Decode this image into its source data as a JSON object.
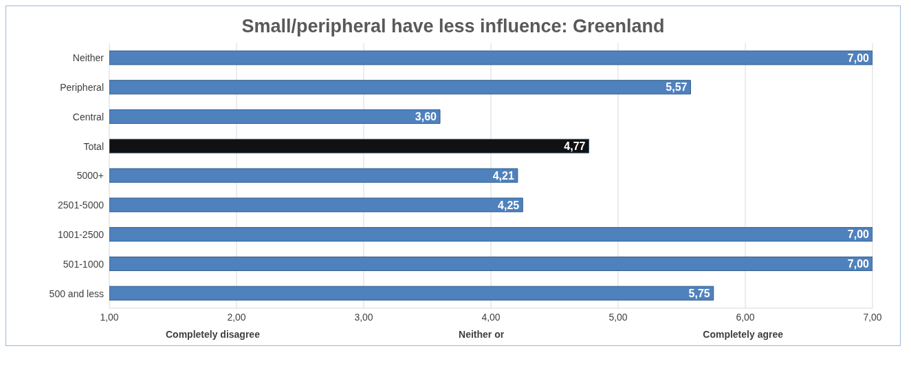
{
  "chart_data": {
    "type": "bar",
    "orientation": "horizontal",
    "title": "Small/peripheral have less influence: Greenland",
    "categories": [
      "Neither",
      "Peripheral",
      "Central",
      "Total",
      "5000+",
      "2501-5000",
      "1001-2500",
      "501-1000",
      "500 and less"
    ],
    "values": [
      7.0,
      5.57,
      3.6,
      4.77,
      4.21,
      4.25,
      7.0,
      7.0,
      5.75
    ],
    "colors": [
      "#4f81bd",
      "#4f81bd",
      "#4f81bd",
      "#111111",
      "#4f81bd",
      "#4f81bd",
      "#4f81bd",
      "#4f81bd",
      "#4f81bd"
    ],
    "value_labels": [
      "7,00",
      "5,57",
      "3,60",
      "4,77",
      "4,21",
      "4,25",
      "7,00",
      "7,00",
      "5,75"
    ],
    "xlim": [
      1,
      7
    ],
    "xticks": [
      {
        "value": 1,
        "label": "1,00"
      },
      {
        "value": 2,
        "label": "2,00"
      },
      {
        "value": 3,
        "label": "3,00"
      },
      {
        "value": 4,
        "label": "4,00"
      },
      {
        "value": 5,
        "label": "5,00"
      },
      {
        "value": 6,
        "label": "6,00"
      },
      {
        "value": 7,
        "label": "7,00"
      }
    ],
    "grid": "x",
    "annotations": [
      "Completely disagree",
      "Neither or",
      "Completely agree"
    ]
  }
}
